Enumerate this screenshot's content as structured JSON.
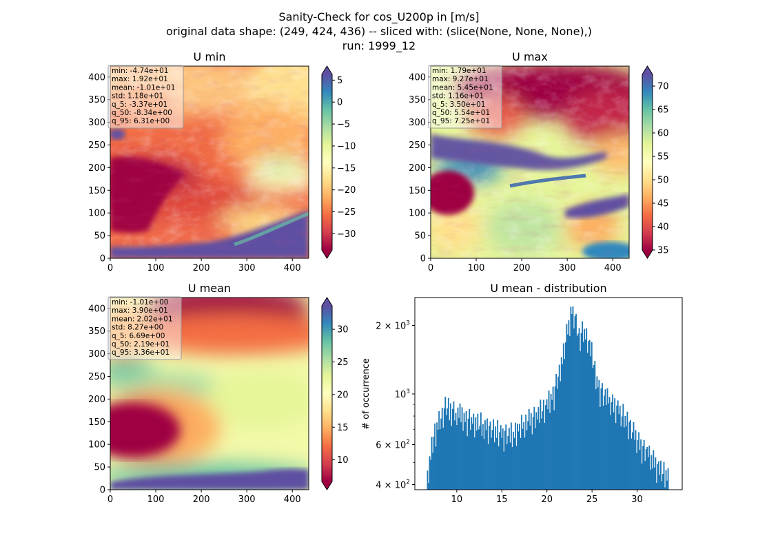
{
  "figure": {
    "suptitle": [
      "Sanity-Check for cos_U200p in [m/s]",
      "original data shape: (249, 424, 436) -- sliced with: (slice(None, None, None),)",
      "run: 1999_12"
    ]
  },
  "chart_data": [
    {
      "type": "heatmap",
      "title": "U min",
      "cmap": "Spectral",
      "xlim": [
        0,
        436
      ],
      "ylim": [
        0,
        424
      ],
      "xticks": [
        0,
        100,
        200,
        300,
        400
      ],
      "yticks": [
        0,
        50,
        100,
        150,
        200,
        250,
        300,
        350,
        400
      ],
      "colorbar": {
        "range": [
          -33.7,
          6.31
        ],
        "ticks": [
          5,
          0,
          -5,
          -10,
          -15,
          -20,
          -25,
          -30
        ],
        "tick_labels": [
          "5",
          "0",
          "−5",
          "−10",
          "−15",
          "−20",
          "−25",
          "−30"
        ]
      },
      "stats": [
        "min: -4.74e+01",
        "max: 1.92e+01",
        "mean: -1.01e+01",
        "std: 1.18e+01",
        "q_5: -3.37e+01",
        "q_50: -8.34e+00",
        "q_95: 6.31e+00"
      ]
    },
    {
      "type": "heatmap",
      "title": "U max",
      "cmap": "Spectral",
      "xlim": [
        0,
        436
      ],
      "ylim": [
        0,
        424
      ],
      "xticks": [
        0,
        100,
        200,
        300,
        400
      ],
      "yticks": [
        0,
        50,
        100,
        150,
        200,
        250,
        300,
        350,
        400
      ],
      "colorbar": {
        "range": [
          35.0,
          72.5
        ],
        "ticks": [
          70,
          65,
          60,
          55,
          50,
          45,
          40,
          35
        ],
        "tick_labels": [
          "70",
          "65",
          "60",
          "55",
          "50",
          "45",
          "40",
          "35"
        ]
      },
      "stats": [
        "min: 1.79e+01",
        "max: 9.27e+01",
        "mean: 5.45e+01",
        "std: 1.16e+01",
        "q_5: 3.50e+01",
        "q_50: 5.54e+01",
        "q_95: 7.25e+01"
      ]
    },
    {
      "type": "heatmap",
      "title": "U mean",
      "cmap": "Spectral",
      "xlim": [
        0,
        436
      ],
      "ylim": [
        0,
        424
      ],
      "xticks": [
        0,
        100,
        200,
        300,
        400
      ],
      "yticks": [
        0,
        50,
        100,
        150,
        200,
        250,
        300,
        350,
        400
      ],
      "colorbar": {
        "range": [
          6.69,
          33.6
        ],
        "ticks": [
          30,
          25,
          20,
          15,
          10
        ],
        "tick_labels": [
          "30",
          "25",
          "20",
          "15",
          "10"
        ]
      },
      "stats": [
        "min: -1.01e+00",
        "max: 3.90e+01",
        "mean: 2.02e+01",
        "std: 8.27e+00",
        "q_5: 6.69e+00",
        "q_50: 2.19e+01",
        "q_95: 3.36e+01"
      ]
    },
    {
      "type": "bar",
      "title": "U mean - distribution",
      "ylabel": "# of occurrence",
      "yscale": "log",
      "xlim": [
        5.35,
        35.0
      ],
      "ylim": [
        380,
        2650
      ],
      "xticks": [
        10,
        15,
        20,
        25,
        30
      ],
      "yticks": [
        {
          "value": 400,
          "base": "4",
          "exp": "2"
        },
        {
          "value": 600,
          "base": "6",
          "exp": "2"
        },
        {
          "value": 1000,
          "base": "",
          "exp": "3"
        },
        {
          "value": 2000,
          "base": "2",
          "exp": "3"
        }
      ],
      "bin_edges_range": [
        6.69,
        33.6
      ],
      "profile_x": [
        6.7,
        6.9,
        7.3,
        7.6,
        8.0,
        8.5,
        9.0,
        9.3,
        9.6,
        10.5,
        12.0,
        13.5,
        15.0,
        16.0,
        17.0,
        18.0,
        19.0,
        20.0,
        20.8,
        21.4,
        22.0,
        22.4,
        22.8,
        23.2,
        23.6,
        24.0,
        24.5,
        25.0,
        25.5,
        26.0,
        26.5,
        27.0,
        27.5,
        28.0,
        28.5,
        29.0,
        29.5,
        30.0,
        31.0,
        32.0,
        33.0,
        33.6
      ],
      "profile_y": [
        430,
        470,
        600,
        680,
        740,
        820,
        880,
        850,
        830,
        790,
        740,
        700,
        660,
        650,
        700,
        760,
        800,
        880,
        1000,
        1250,
        1600,
        2000,
        2300,
        2000,
        1750,
        1850,
        1700,
        1450,
        1150,
        1000,
        950,
        900,
        880,
        830,
        780,
        730,
        670,
        620,
        550,
        480,
        440,
        420
      ],
      "noise": [
        5,
        -12,
        8,
        -3,
        14,
        -9,
        2,
        11,
        -15,
        6,
        -4,
        13,
        -8,
        0,
        9,
        -13,
        4,
        15,
        -6,
        -1,
        10,
        -11,
        7,
        -14,
        3,
        12,
        -7,
        1,
        -10,
        8,
        -2,
        14,
        -5,
        11,
        -12,
        6,
        -3,
        9,
        -15,
        2,
        13,
        -8,
        5,
        -1,
        10,
        -13,
        7,
        -6,
        12,
        -4,
        0,
        15,
        -9,
        3,
        -11,
        8,
        -2,
        11,
        -14,
        4,
        9,
        -7,
        1,
        13,
        -10,
        6,
        -5,
        14,
        -12,
        2,
        10,
        -3,
        7,
        -15,
        5,
        12,
        -8,
        0,
        9,
        -6,
        15,
        -11,
        3,
        -4,
        11,
        -13,
        8,
        -1,
        6,
        -9,
        14,
        -2,
        4,
        -12,
        10,
        -7,
        1,
        13,
        -5,
        7,
        -14,
        2,
        12,
        -10,
        5,
        -3,
        9,
        -8,
        15,
        -6,
        0,
        11,
        -13,
        3,
        8,
        -4,
        14,
        -11,
        6,
        -2,
        10,
        -15,
        4,
        13,
        -7,
        1,
        9,
        -12,
        7,
        -5,
        12,
        -9,
        2,
        15,
        -3,
        5,
        -14,
        11,
        -1,
        8,
        -10,
        6,
        13,
        -6,
        0,
        10,
        -13,
        3,
        14,
        -8,
        7,
        -2,
        12,
        -11,
        4,
        9,
        -4,
        15,
        -7,
        1,
        11,
        -12,
        5,
        -3,
        8,
        -15,
        6,
        13,
        -9,
        2,
        10,
        -5,
        14,
        -1,
        7,
        -10,
        3,
        12,
        -6,
        9,
        -14,
        4,
        11,
        -2,
        8,
        -11,
        0,
        15,
        -8,
        5,
        -4,
        13,
        -13,
        6,
        10,
        -7,
        1,
        14,
        -3,
        9,
        -12,
        2,
        12,
        -5,
        7,
        -15,
        3,
        11,
        -9,
        4,
        8,
        -1,
        13,
        -10,
        6,
        -6,
        15,
        -2,
        10,
        -14,
        5,
        9,
        -4,
        12,
        -8,
        0,
        14,
        -11,
        7,
        -3,
        11,
        -13
      ]
    }
  ]
}
